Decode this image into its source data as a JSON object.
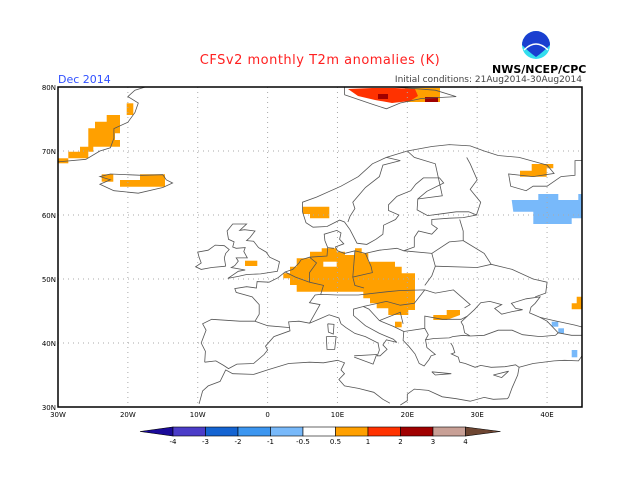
{
  "header": {
    "title": "CFSv2 monthly T2m anomalies (K)",
    "month": "Dec 2014",
    "initial_conditions": "Initial conditions: 21Aug2014-30Aug2014",
    "agency": "NWS/NCEP/CPC",
    "logo_text": "NOAA"
  },
  "map": {
    "lon_range": [
      -30,
      45
    ],
    "lat_range": [
      30,
      80
    ],
    "lon_labels": [
      "30W",
      "20W",
      "10W",
      "0",
      "10E",
      "20E",
      "30E",
      "40E"
    ],
    "lat_labels": [
      "80N",
      "70N",
      "60N",
      "50N",
      "40N",
      "30N"
    ]
  },
  "colorbar": {
    "labels": [
      "-4",
      "-3",
      "-2",
      "-1",
      "-0.5",
      "0.5",
      "1",
      "2",
      "3",
      "4"
    ],
    "colors": [
      "#1a0a99",
      "#4b3cc8",
      "#1464d2",
      "#3c96f0",
      "#78b9fa",
      "#ffffff",
      "#ffa000",
      "#ff3200",
      "#a00000",
      "#c8a096",
      "#6e4632"
    ]
  },
  "anomaly_levels": {
    "orange": "#ffa000",
    "red": "#ff3200",
    "darkred": "#a00000",
    "lightblue": "#78b9fa"
  }
}
